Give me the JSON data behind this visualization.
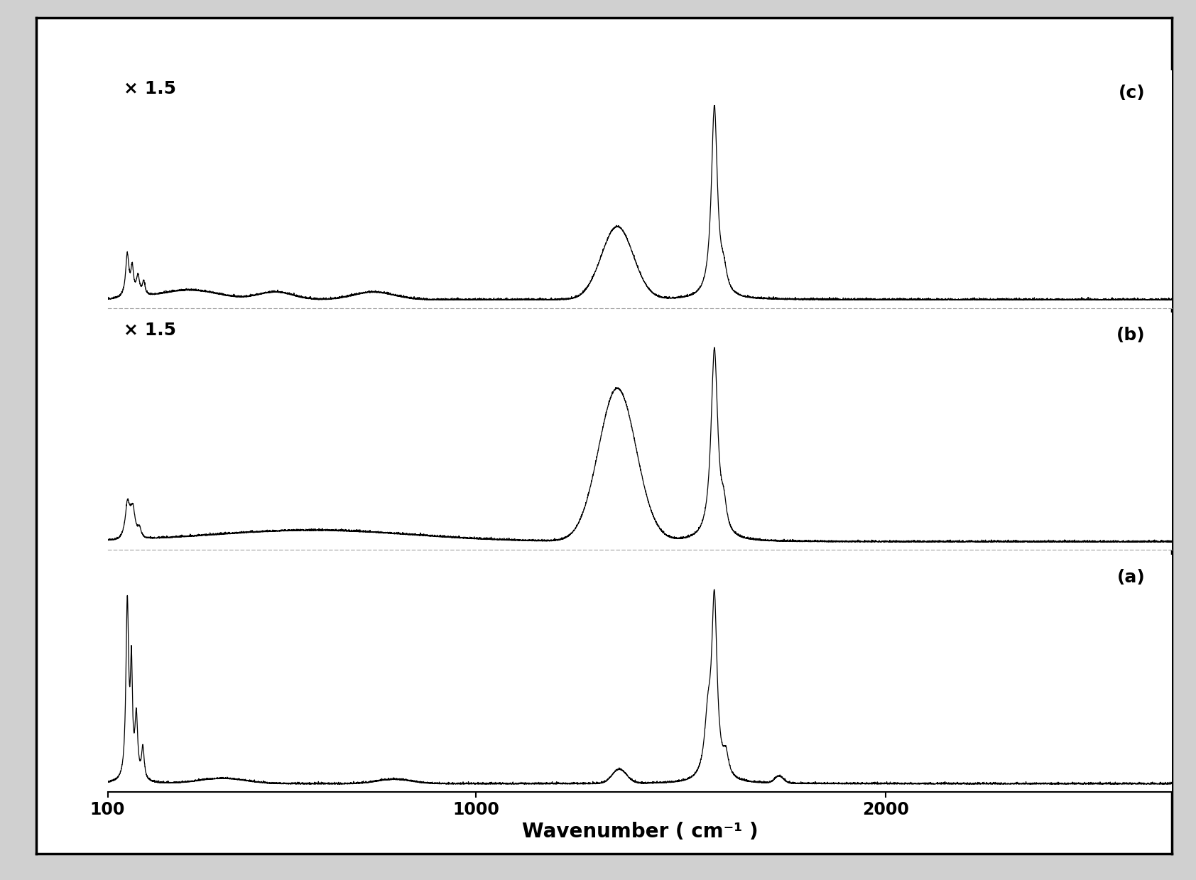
{
  "xlabel": "Wavenumber ( cm⁻¹ )",
  "xlabel_fontsize": 20,
  "tick_fontsize": 17,
  "label_fontsize": 18,
  "xmin": 100,
  "xmax": 2700,
  "xticks": [
    100,
    1000,
    2000
  ],
  "xtick_labels": [
    "100",
    "1000",
    "2000"
  ],
  "panel_labels": [
    "(c)",
    "(b)",
    "(a)"
  ],
  "scale_labels": [
    "× 1.5",
    "× 1.5",
    ""
  ],
  "line_color": "#000000",
  "bg_color": "#ffffff",
  "outer_bg": "#d0d0d0"
}
